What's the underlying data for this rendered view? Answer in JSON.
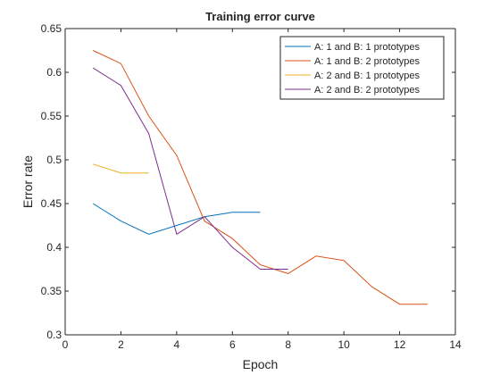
{
  "chart_data": {
    "type": "line",
    "title": "Training error curve",
    "xlabel": "Epoch",
    "ylabel": "Error rate",
    "xlim": [
      0,
      14
    ],
    "ylim": [
      0.3,
      0.65
    ],
    "xticks": [
      0,
      2,
      4,
      6,
      8,
      10,
      12,
      14
    ],
    "yticks": [
      0.3,
      0.35,
      0.4,
      0.45,
      0.5,
      0.55,
      0.6,
      0.65
    ],
    "xtick_labels": [
      "0",
      "2",
      "4",
      "6",
      "8",
      "10",
      "12",
      "14"
    ],
    "ytick_labels": [
      "0.3",
      "0.35",
      "0.4",
      "0.45",
      "0.5",
      "0.55",
      "0.6",
      "0.65"
    ],
    "grid": false,
    "legend_position": "top-right",
    "series": [
      {
        "name": "A: 1 and B: 1 prototypes",
        "color": "#0072BD",
        "x": [
          1,
          2,
          3,
          4,
          5,
          6,
          7
        ],
        "y": [
          0.45,
          0.43,
          0.415,
          0.425,
          0.435,
          0.44,
          0.44
        ]
      },
      {
        "name": "A: 1 and B: 2 prototypes",
        "color": "#D95319",
        "x": [
          1,
          2,
          3,
          4,
          5,
          6,
          7,
          8,
          9,
          10,
          11,
          12,
          13
        ],
        "y": [
          0.625,
          0.61,
          0.55,
          0.505,
          0.43,
          0.41,
          0.38,
          0.37,
          0.39,
          0.385,
          0.355,
          0.335,
          0.335
        ]
      },
      {
        "name": "A: 2 and B: 1 prototypes",
        "color": "#EDB120",
        "x": [
          1,
          2,
          3
        ],
        "y": [
          0.495,
          0.485,
          0.485
        ]
      },
      {
        "name": "A: 2 and B: 2 prototypes",
        "color": "#7E2F8E",
        "x": [
          1,
          2,
          3,
          4,
          5,
          6,
          7,
          8
        ],
        "y": [
          0.605,
          0.585,
          0.53,
          0.415,
          0.435,
          0.4,
          0.375,
          0.375
        ]
      }
    ]
  }
}
